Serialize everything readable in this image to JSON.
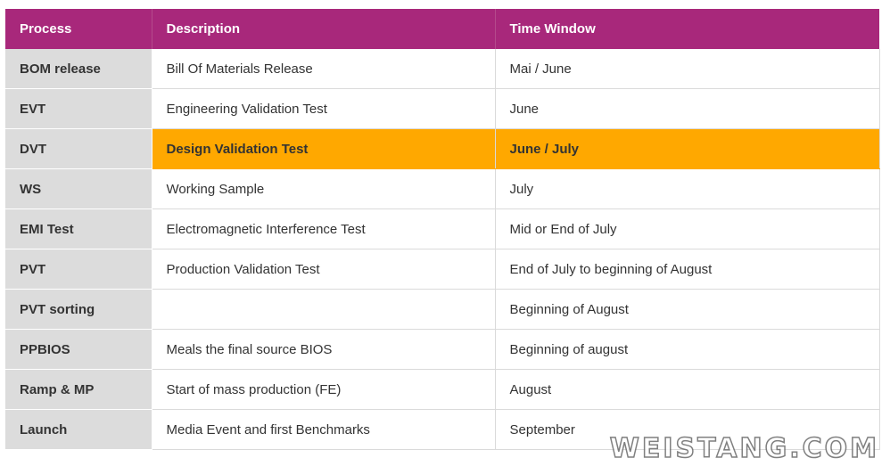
{
  "table": {
    "headers": [
      "Process",
      "Description",
      "Time Window"
    ],
    "rows": [
      {
        "process": "BOM release",
        "description": "Bill Of Materials Release",
        "time": "Mai / June"
      },
      {
        "process": "EVT",
        "description": "Engineering Validation Test",
        "time": "June"
      },
      {
        "process": "DVT",
        "description": "Design Validation Test",
        "time": "June / July",
        "highlight": true
      },
      {
        "process": "WS",
        "description": "Working Sample",
        "time": "July"
      },
      {
        "process": "EMI Test",
        "description": "Electromagnetic Interference Test",
        "time": "Mid or End of July"
      },
      {
        "process": "PVT",
        "description": "Production Validation Test",
        "time": "End of July to beginning of August"
      },
      {
        "process": "PVT sorting",
        "description": "",
        "time": "Beginning of August"
      },
      {
        "process": "PPBIOS",
        "description": "Meals the final source BIOS",
        "time": "Beginning of august"
      },
      {
        "process": "Ramp & MP",
        "description": "Start of mass production (FE)",
        "time": "August"
      },
      {
        "process": "Launch",
        "description": "Media Event and first Benchmarks",
        "time": "September"
      }
    ]
  },
  "colors": {
    "header_bg": "#a8287b",
    "highlight_bg": "#ffa800",
    "process_col_bg": "#dcdcdc"
  },
  "watermark": "WEISTANG.COM"
}
